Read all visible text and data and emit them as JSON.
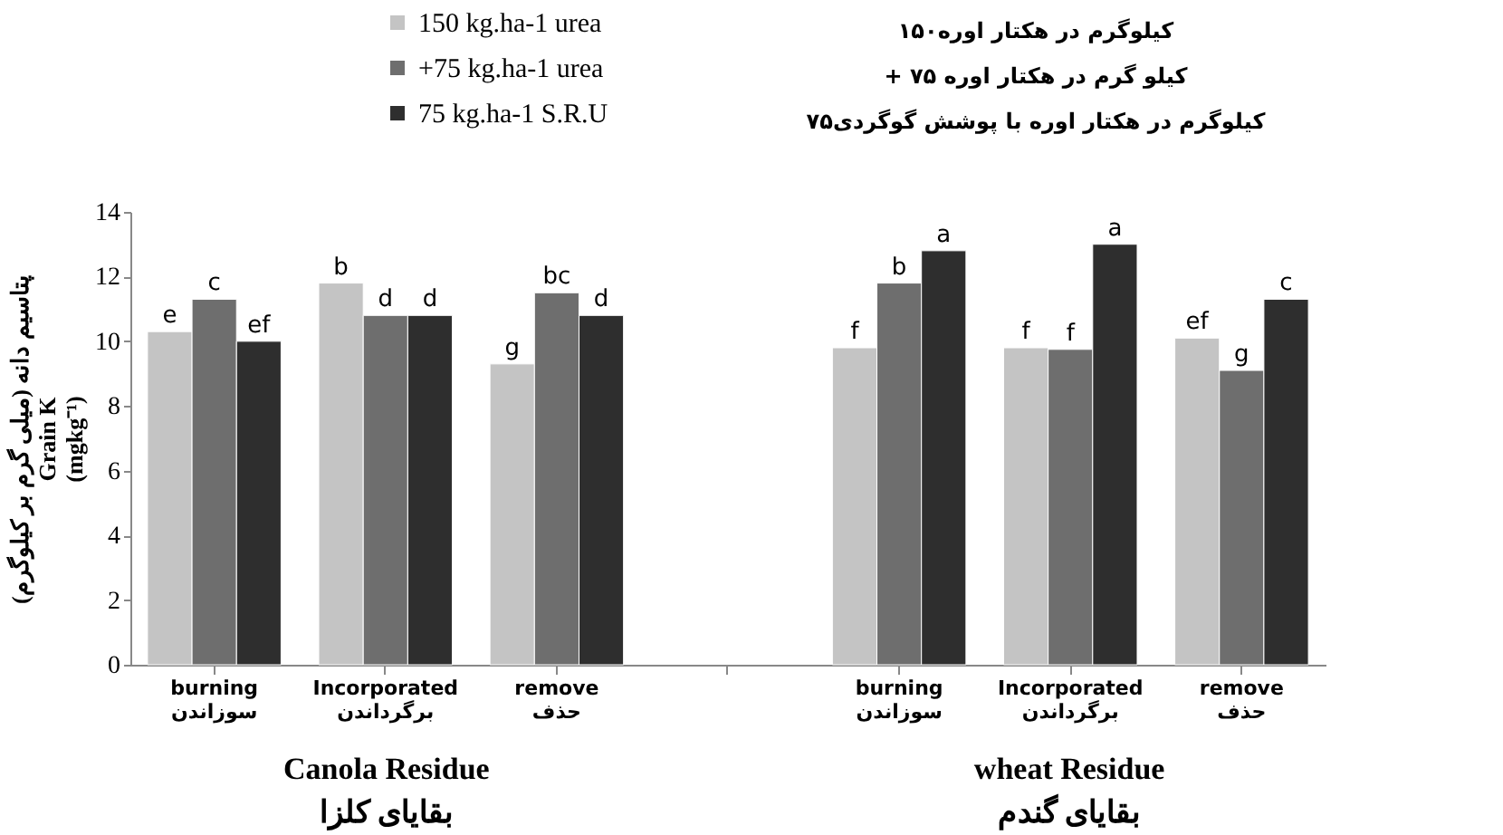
{
  "chart_data": {
    "type": "bar",
    "categories": [
      "burning\nسوزاندن",
      "Incorporated\nبرگرداندن",
      "remove\nحذف",
      null,
      "burning\nسوزاندن",
      "Incorporated\nبرگرداندن",
      "remove\nحذف"
    ],
    "series": [
      {
        "name": "150 kg.ha-1 urea",
        "color": "#c4c4c4",
        "values": [
          10.3,
          11.8,
          9.3,
          null,
          9.8,
          9.8,
          10.1
        ],
        "value_labels": [
          "e",
          "b",
          "g",
          null,
          "f",
          "f",
          "ef"
        ]
      },
      {
        "name": "+75 kg.ha-1 urea",
        "color": "#6e6e6e",
        "values": [
          11.3,
          10.8,
          11.5,
          null,
          11.8,
          9.75,
          9.1
        ],
        "value_labels": [
          "c",
          "d",
          "bc",
          null,
          "b",
          "f",
          "g"
        ]
      },
      {
        "name": "75 kg.ha-1 S.R.U",
        "color": "#2e2e2e",
        "values": [
          10.0,
          10.8,
          10.8,
          null,
          12.8,
          13.0,
          11.3
        ],
        "value_labels": [
          "ef",
          "d",
          "d",
          null,
          "a",
          "a",
          "c"
        ]
      }
    ],
    "ylabel": "پتاسیم دانه (میلی گرم بر کیلوگرم)\nGrain K\n(mgkg⁻¹)",
    "ylim": [
      0,
      14
    ],
    "yticks": [
      0,
      2,
      4,
      6,
      8,
      10,
      12,
      14
    ],
    "grid": false,
    "legend": "top",
    "annotations": [
      "۱۵۰کیلوگرم در هکتار اوره",
      "+ ۷۵ کیلو گرم در هکتار اوره",
      "۷۵کیلوگرم در هکتار اوره با پوشش گوگردی",
      "Canola Residue\nبقایای کلزا",
      "wheat Residue\nبقایای گندم"
    ]
  }
}
